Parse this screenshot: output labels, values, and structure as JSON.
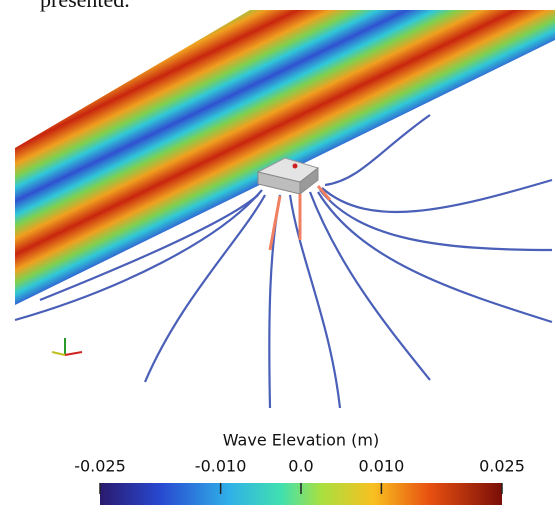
{
  "caption_fragment": "presented.",
  "colorbar": {
    "title": "Wave Elevation (m)",
    "clim": [
      -0.025,
      0.025
    ],
    "ticks": [
      -0.025,
      {
        "value": -0.01,
        "label": "-0.010"
      },
      {
        "value": 0,
        "label": "0.0"
      },
      {
        "value": 0.01,
        "label": "0.010"
      },
      0.025
    ]
  }
}
